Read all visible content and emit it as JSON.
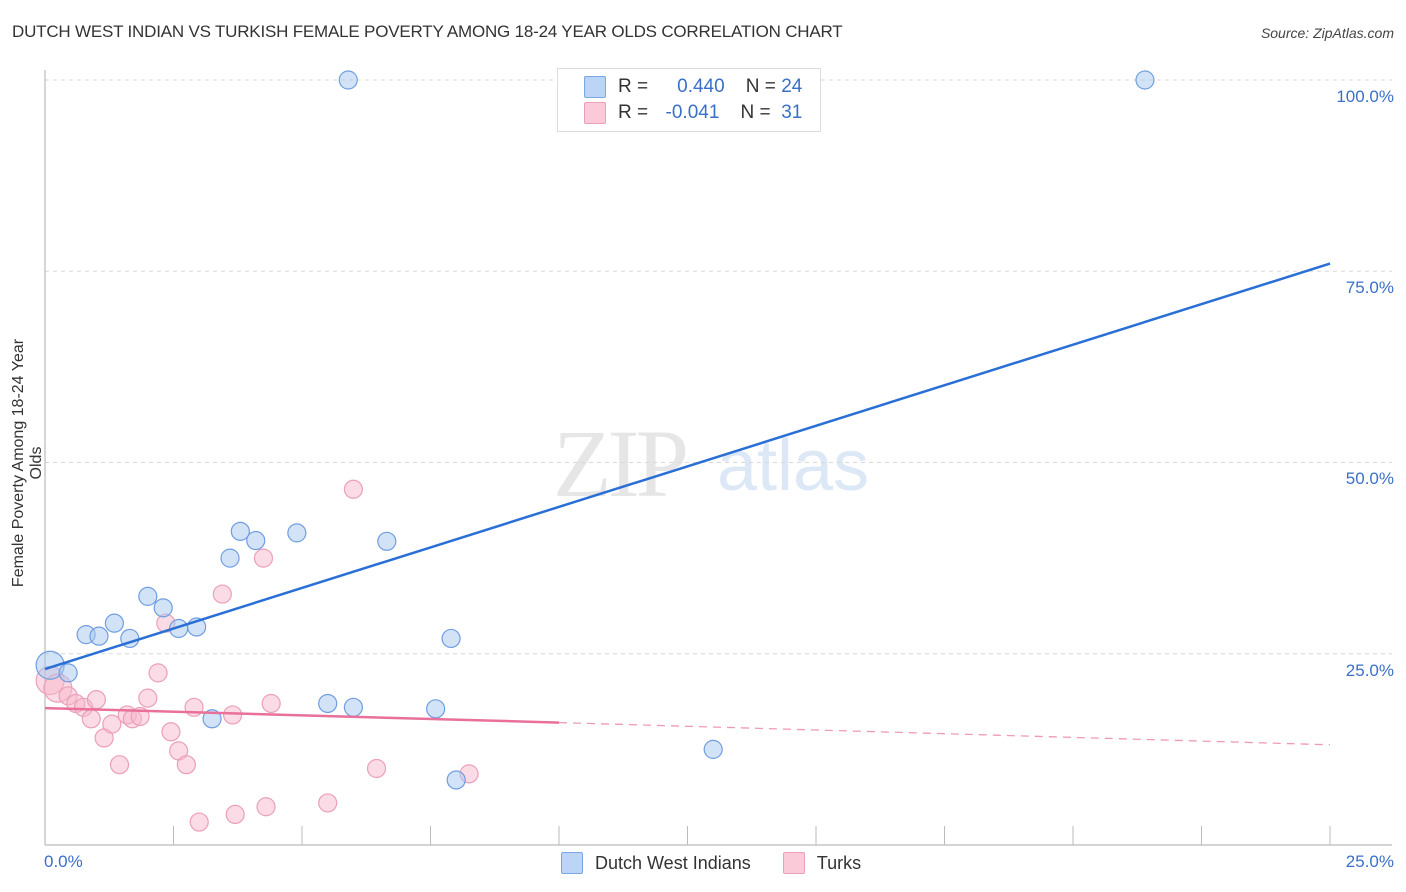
{
  "header": {
    "title": "DUTCH WEST INDIAN VS TURKISH FEMALE POVERTY AMONG 18-24 YEAR OLDS CORRELATION CHART",
    "source": "Source: ZipAtlas.com"
  },
  "watermark": {
    "zip": "ZIP",
    "atlas": "atlas"
  },
  "legend": {
    "rows": [
      {
        "r_label": "R =",
        "r_value": "0.440",
        "n_label": "N =",
        "n_value": "24",
        "color": "#a8c8f0"
      },
      {
        "r_label": "R =",
        "r_value": "-0.041",
        "n_label": "N =",
        "n_value": "31",
        "color": "#f8b8cc"
      }
    ]
  },
  "axes": {
    "y_label": "Female Poverty Among 18-24 Year Olds",
    "y_ticks": [
      "100.0%",
      "75.0%",
      "50.0%",
      "25.0%"
    ],
    "x_ticks": [
      "0.0%",
      "25.0%"
    ]
  },
  "bottom_legend": [
    {
      "label": "Dutch West Indians",
      "color": "#a8c8f0"
    },
    {
      "label": "Turks",
      "color": "#f8b8cc"
    }
  ],
  "colors": {
    "blue_line": "#2a6fd6",
    "pink_line": "#e8709a",
    "blue_fill": "rgba(168,200,240,0.5)",
    "blue_stroke": "#6f9ee0",
    "pink_fill": "rgba(248,184,204,0.5)",
    "pink_stroke": "#eaa0b8",
    "tick_text": "#3a70c7"
  },
  "chart_data": {
    "type": "scatter",
    "title": "DUTCH WEST INDIAN VS TURKISH FEMALE POVERTY AMONG 18-24 YEAR OLDS CORRELATION CHART",
    "xlabel": "",
    "ylabel": "Female Poverty Among 18-24 Year Olds",
    "xlim": [
      0,
      25
    ],
    "ylim": [
      0,
      100
    ],
    "grid": true,
    "legend_position": "top-center and bottom",
    "series": [
      {
        "name": "Dutch West Indians",
        "R": 0.44,
        "N": 24,
        "trend": {
          "x0": 0,
          "y0": 23.0,
          "x1": 25,
          "y1": 76.0
        },
        "points": [
          [
            0.1,
            23.5
          ],
          [
            0.45,
            22.5
          ],
          [
            0.8,
            27.5
          ],
          [
            1.05,
            27.3
          ],
          [
            1.35,
            29.0
          ],
          [
            1.65,
            27.0
          ],
          [
            2.0,
            32.5
          ],
          [
            2.3,
            31.0
          ],
          [
            2.6,
            28.3
          ],
          [
            2.95,
            28.5
          ],
          [
            3.25,
            16.5
          ],
          [
            3.6,
            37.5
          ],
          [
            3.8,
            41.0
          ],
          [
            4.1,
            39.8
          ],
          [
            4.9,
            40.8
          ],
          [
            5.5,
            18.5
          ],
          [
            5.9,
            100.0
          ],
          [
            6.0,
            18.0
          ],
          [
            6.65,
            39.7
          ],
          [
            7.6,
            17.8
          ],
          [
            7.9,
            27.0
          ],
          [
            8.0,
            8.5
          ],
          [
            13.0,
            12.5
          ],
          [
            21.4,
            100.0
          ]
        ]
      },
      {
        "name": "Turks",
        "R": -0.041,
        "N": 31,
        "trend": {
          "x0": 0,
          "y0": 17.9,
          "x1": 10,
          "y1": 16.0,
          "dashed_to": {
            "x": 25,
            "y": 13.1
          }
        },
        "points": [
          [
            0.1,
            21.5
          ],
          [
            0.25,
            20.5
          ],
          [
            0.45,
            19.5
          ],
          [
            0.6,
            18.5
          ],
          [
            0.75,
            18.0
          ],
          [
            0.9,
            16.5
          ],
          [
            1.0,
            19.0
          ],
          [
            1.15,
            14.0
          ],
          [
            1.3,
            15.8
          ],
          [
            1.45,
            10.5
          ],
          [
            1.6,
            17.0
          ],
          [
            1.7,
            16.5
          ],
          [
            1.85,
            16.8
          ],
          [
            2.0,
            19.2
          ],
          [
            2.2,
            22.5
          ],
          [
            2.35,
            29.0
          ],
          [
            2.45,
            14.8
          ],
          [
            2.6,
            12.3
          ],
          [
            2.75,
            10.5
          ],
          [
            2.9,
            18.0
          ],
          [
            3.0,
            3.0
          ],
          [
            3.45,
            32.8
          ],
          [
            3.65,
            17.0
          ],
          [
            3.7,
            4.0
          ],
          [
            4.25,
            37.5
          ],
          [
            4.3,
            5.0
          ],
          [
            4.4,
            18.5
          ],
          [
            5.5,
            5.5
          ],
          [
            6.0,
            46.5
          ],
          [
            6.45,
            10.0
          ],
          [
            8.25,
            9.3
          ]
        ]
      }
    ]
  }
}
